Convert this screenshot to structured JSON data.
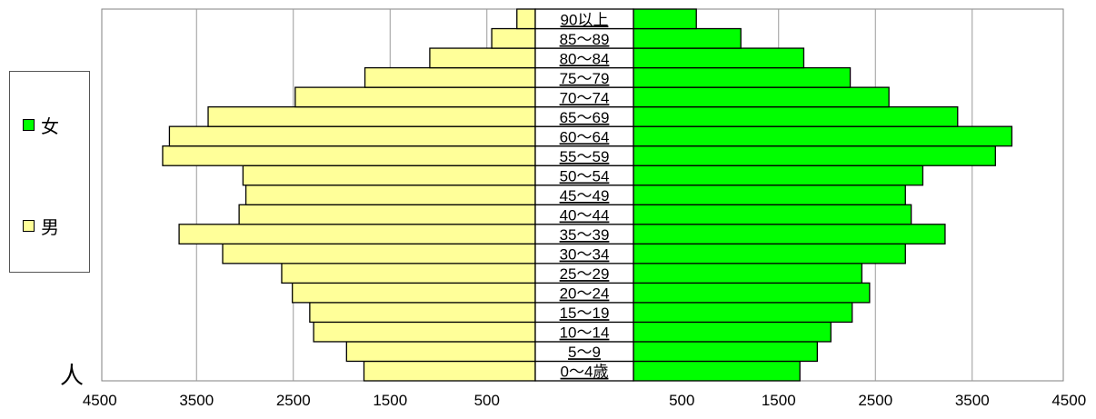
{
  "legend": {
    "female_label": "女",
    "male_label": "男",
    "female_color": "#00ff00",
    "male_color": "#ffff99"
  },
  "unit_label": "人",
  "chart_data": {
    "type": "bar",
    "orientation": "horizontal",
    "layout": "population-pyramid",
    "title": "",
    "categories": [
      "0～4歳",
      "5～9",
      "10～14",
      "15～19",
      "20～24",
      "25～29",
      "30～34",
      "35～39",
      "40～44",
      "45～49",
      "50～54",
      "55～59",
      "60～64",
      "65～69",
      "70～74",
      "75～79",
      "80～84",
      "85～89",
      "90以上"
    ],
    "series": [
      {
        "name": "男",
        "side": "left",
        "color": "#ffff99",
        "values": [
          1770,
          1950,
          2290,
          2330,
          2510,
          2620,
          3230,
          3680,
          3060,
          2990,
          3020,
          3850,
          3780,
          3380,
          2480,
          1760,
          1090,
          450,
          190
        ]
      },
      {
        "name": "女",
        "side": "right",
        "color": "#00ff00",
        "values": [
          1720,
          1900,
          2040,
          2260,
          2440,
          2360,
          2810,
          3220,
          2870,
          2810,
          2990,
          3740,
          3910,
          3350,
          2640,
          2240,
          1760,
          1110,
          650
        ]
      }
    ],
    "xlim": [
      0,
      4500
    ],
    "left_tick_labels": [
      "4500",
      "3500",
      "2500",
      "1500",
      "500"
    ],
    "right_tick_labels": [
      "500",
      "1500",
      "2500",
      "3500",
      "4500"
    ],
    "tick_values": [
      4500,
      3500,
      2500,
      1500,
      500
    ],
    "grid": true
  }
}
